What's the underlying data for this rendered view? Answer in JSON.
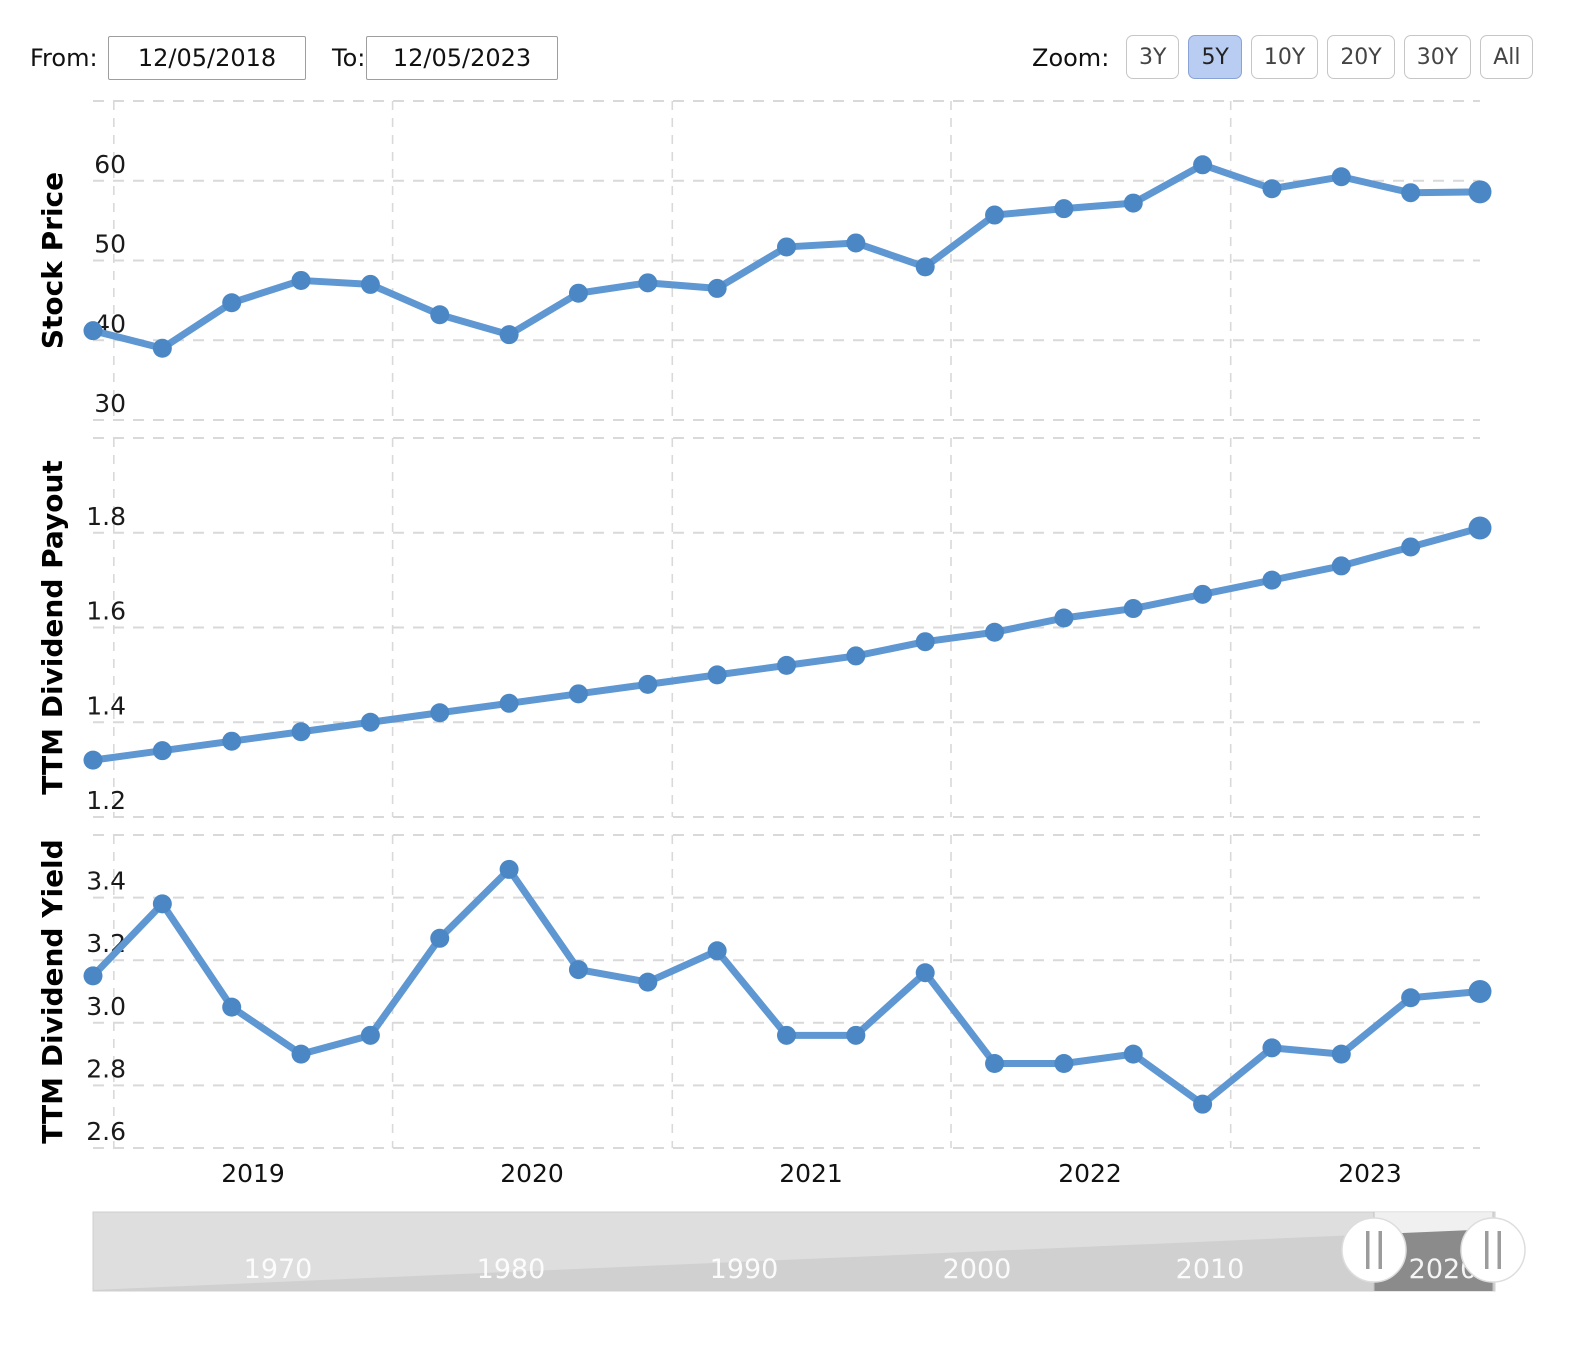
{
  "controls": {
    "from_label": "From:",
    "from_value": "12/05/2018",
    "to_label": "To:",
    "to_value": "12/05/2023",
    "zoom_label": "Zoom:",
    "zoom_buttons": [
      {
        "label": "3Y",
        "selected": false
      },
      {
        "label": "5Y",
        "selected": true
      },
      {
        "label": "10Y",
        "selected": false
      },
      {
        "label": "20Y",
        "selected": false
      },
      {
        "label": "30Y",
        "selected": false
      },
      {
        "label": "All",
        "selected": false
      }
    ]
  },
  "colors": {
    "line": "#5e97d1",
    "marker": "#4b87c5",
    "grid": "#d9d9d9",
    "zoom_selected_bg": "#b9cdf2",
    "zoom_selected_border": "#8aa3d6",
    "navigator_track": "#dedede",
    "navigator_area": "#d0d0d0",
    "navigator_selected_area": "#8b8b8b"
  },
  "x_axis": {
    "year_labels": [
      "2019",
      "2020",
      "2021",
      "2022",
      "2023"
    ]
  },
  "navigator": {
    "decade_labels": [
      "1970",
      "1980",
      "1990",
      "2000",
      "2010",
      "2020"
    ],
    "handle_icon": "||"
  },
  "chart_data": [
    {
      "type": "line",
      "title": "",
      "ylabel": "Stock Price",
      "xlabel": "",
      "legend": "none",
      "grid": true,
      "x": [
        "Dec 2018",
        "Mar 2019",
        "Jun 2019",
        "Sep 2019",
        "Dec 2019",
        "Mar 2020",
        "Jun 2020",
        "Sep 2020",
        "Dec 2020",
        "Mar 2021",
        "Jun 2021",
        "Sep 2021",
        "Dec 2021",
        "Mar 2022",
        "Jun 2022",
        "Sep 2022",
        "Dec 2022",
        "Mar 2023",
        "Jun 2023",
        "Sep 2023",
        "Dec 2023"
      ],
      "values": [
        41.2,
        39.0,
        44.7,
        47.5,
        47.0,
        43.2,
        40.7,
        45.9,
        47.2,
        46.5,
        51.7,
        52.2,
        49.2,
        55.7,
        56.5,
        57.2,
        62.0,
        59.0,
        60.5,
        58.5,
        58.6
      ],
      "ylim": [
        30,
        70
      ],
      "yticks": [
        30,
        40,
        50,
        60
      ],
      "ytick_labels": [
        "30",
        "40",
        "50",
        "60"
      ]
    },
    {
      "type": "line",
      "title": "",
      "ylabel": "TTM Dividend Payout",
      "xlabel": "",
      "legend": "none",
      "grid": true,
      "x": [
        "Dec 2018",
        "Mar 2019",
        "Jun 2019",
        "Sep 2019",
        "Dec 2019",
        "Mar 2020",
        "Jun 2020",
        "Sep 2020",
        "Dec 2020",
        "Mar 2021",
        "Jun 2021",
        "Sep 2021",
        "Dec 2021",
        "Mar 2022",
        "Jun 2022",
        "Sep 2022",
        "Dec 2022",
        "Mar 2023",
        "Jun 2023",
        "Sep 2023",
        "Dec 2023"
      ],
      "values": [
        1.32,
        1.34,
        1.36,
        1.38,
        1.4,
        1.42,
        1.44,
        1.46,
        1.48,
        1.5,
        1.52,
        1.54,
        1.57,
        1.59,
        1.62,
        1.64,
        1.67,
        1.7,
        1.73,
        1.77,
        1.81
      ],
      "ylim": [
        1.2,
        2.0
      ],
      "yticks": [
        1.2,
        1.4,
        1.6,
        1.8
      ],
      "ytick_labels": [
        "1.2",
        "1.4",
        "1.6",
        "1.8"
      ]
    },
    {
      "type": "line",
      "title": "",
      "ylabel": "TTM Dividend Yield",
      "xlabel": "",
      "legend": "none",
      "grid": true,
      "x": [
        "Dec 2018",
        "Mar 2019",
        "Jun 2019",
        "Sep 2019",
        "Dec 2019",
        "Mar 2020",
        "Jun 2020",
        "Sep 2020",
        "Dec 2020",
        "Mar 2021",
        "Jun 2021",
        "Sep 2021",
        "Dec 2021",
        "Mar 2022",
        "Jun 2022",
        "Sep 2022",
        "Dec 2022",
        "Mar 2023",
        "Jun 2023",
        "Sep 2023",
        "Dec 2023"
      ],
      "values": [
        3.15,
        3.38,
        3.05,
        2.9,
        2.96,
        3.27,
        3.49,
        3.17,
        3.13,
        3.23,
        2.96,
        2.96,
        3.16,
        2.87,
        2.87,
        2.9,
        2.74,
        2.92,
        2.9,
        3.08,
        3.1
      ],
      "ylim": [
        2.6,
        3.6
      ],
      "yticks": [
        2.6,
        2.8,
        3.0,
        3.2,
        3.4
      ],
      "ytick_labels": [
        "2.6",
        "2.8",
        "3.0",
        "3.2",
        "3.4"
      ]
    }
  ]
}
